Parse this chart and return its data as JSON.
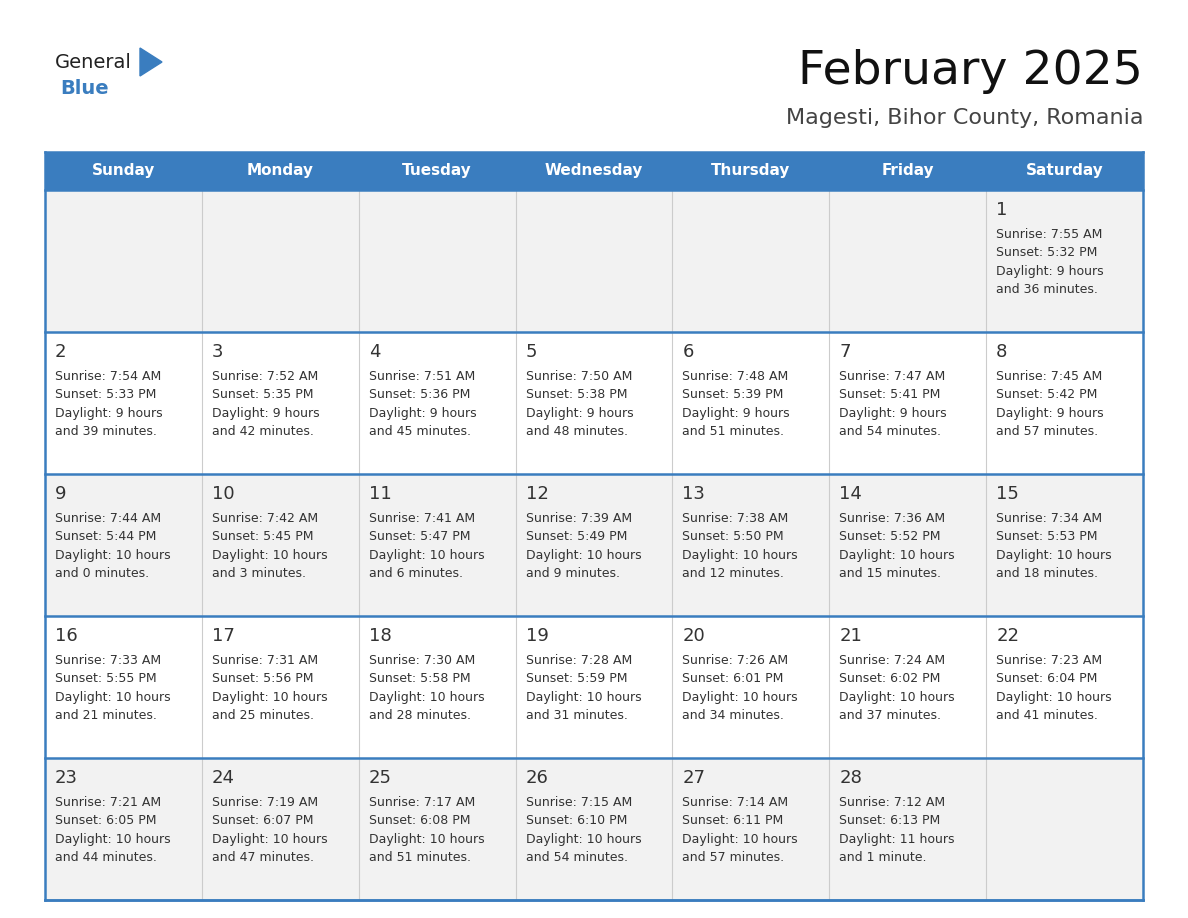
{
  "title": "February 2025",
  "subtitle": "Magesti, Bihor County, Romania",
  "header_bg": "#3A7DBF",
  "header_text_color": "#FFFFFF",
  "cell_border_color": "#3A7DBF",
  "row_separator_color": "#3A7DBF",
  "col_separator_color": "#CCCCCC",
  "day_number_color": "#333333",
  "cell_text_color": "#333333",
  "bg_color": "#FFFFFF",
  "cell_bg_odd": "#F2F2F2",
  "cell_bg_even": "#FFFFFF",
  "days_of_week": [
    "Sunday",
    "Monday",
    "Tuesday",
    "Wednesday",
    "Thursday",
    "Friday",
    "Saturday"
  ],
  "logo_general_color": "#222222",
  "logo_blue_color": "#3A7DBF",
  "calendar_data": [
    [
      null,
      null,
      null,
      null,
      null,
      null,
      {
        "day": 1,
        "sunrise": "7:55 AM",
        "sunset": "5:32 PM",
        "daylight": "9 hours",
        "daylight2": "and 36 minutes."
      }
    ],
    [
      {
        "day": 2,
        "sunrise": "7:54 AM",
        "sunset": "5:33 PM",
        "daylight": "9 hours",
        "daylight2": "and 39 minutes."
      },
      {
        "day": 3,
        "sunrise": "7:52 AM",
        "sunset": "5:35 PM",
        "daylight": "9 hours",
        "daylight2": "and 42 minutes."
      },
      {
        "day": 4,
        "sunrise": "7:51 AM",
        "sunset": "5:36 PM",
        "daylight": "9 hours",
        "daylight2": "and 45 minutes."
      },
      {
        "day": 5,
        "sunrise": "7:50 AM",
        "sunset": "5:38 PM",
        "daylight": "9 hours",
        "daylight2": "and 48 minutes."
      },
      {
        "day": 6,
        "sunrise": "7:48 AM",
        "sunset": "5:39 PM",
        "daylight": "9 hours",
        "daylight2": "and 51 minutes."
      },
      {
        "day": 7,
        "sunrise": "7:47 AM",
        "sunset": "5:41 PM",
        "daylight": "9 hours",
        "daylight2": "and 54 minutes."
      },
      {
        "day": 8,
        "sunrise": "7:45 AM",
        "sunset": "5:42 PM",
        "daylight": "9 hours",
        "daylight2": "and 57 minutes."
      }
    ],
    [
      {
        "day": 9,
        "sunrise": "7:44 AM",
        "sunset": "5:44 PM",
        "daylight": "10 hours",
        "daylight2": "and 0 minutes."
      },
      {
        "day": 10,
        "sunrise": "7:42 AM",
        "sunset": "5:45 PM",
        "daylight": "10 hours",
        "daylight2": "and 3 minutes."
      },
      {
        "day": 11,
        "sunrise": "7:41 AM",
        "sunset": "5:47 PM",
        "daylight": "10 hours",
        "daylight2": "and 6 minutes."
      },
      {
        "day": 12,
        "sunrise": "7:39 AM",
        "sunset": "5:49 PM",
        "daylight": "10 hours",
        "daylight2": "and 9 minutes."
      },
      {
        "day": 13,
        "sunrise": "7:38 AM",
        "sunset": "5:50 PM",
        "daylight": "10 hours",
        "daylight2": "and 12 minutes."
      },
      {
        "day": 14,
        "sunrise": "7:36 AM",
        "sunset": "5:52 PM",
        "daylight": "10 hours",
        "daylight2": "and 15 minutes."
      },
      {
        "day": 15,
        "sunrise": "7:34 AM",
        "sunset": "5:53 PM",
        "daylight": "10 hours",
        "daylight2": "and 18 minutes."
      }
    ],
    [
      {
        "day": 16,
        "sunrise": "7:33 AM",
        "sunset": "5:55 PM",
        "daylight": "10 hours",
        "daylight2": "and 21 minutes."
      },
      {
        "day": 17,
        "sunrise": "7:31 AM",
        "sunset": "5:56 PM",
        "daylight": "10 hours",
        "daylight2": "and 25 minutes."
      },
      {
        "day": 18,
        "sunrise": "7:30 AM",
        "sunset": "5:58 PM",
        "daylight": "10 hours",
        "daylight2": "and 28 minutes."
      },
      {
        "day": 19,
        "sunrise": "7:28 AM",
        "sunset": "5:59 PM",
        "daylight": "10 hours",
        "daylight2": "and 31 minutes."
      },
      {
        "day": 20,
        "sunrise": "7:26 AM",
        "sunset": "6:01 PM",
        "daylight": "10 hours",
        "daylight2": "and 34 minutes."
      },
      {
        "day": 21,
        "sunrise": "7:24 AM",
        "sunset": "6:02 PM",
        "daylight": "10 hours",
        "daylight2": "and 37 minutes."
      },
      {
        "day": 22,
        "sunrise": "7:23 AM",
        "sunset": "6:04 PM",
        "daylight": "10 hours",
        "daylight2": "and 41 minutes."
      }
    ],
    [
      {
        "day": 23,
        "sunrise": "7:21 AM",
        "sunset": "6:05 PM",
        "daylight": "10 hours",
        "daylight2": "and 44 minutes."
      },
      {
        "day": 24,
        "sunrise": "7:19 AM",
        "sunset": "6:07 PM",
        "daylight": "10 hours",
        "daylight2": "and 47 minutes."
      },
      {
        "day": 25,
        "sunrise": "7:17 AM",
        "sunset": "6:08 PM",
        "daylight": "10 hours",
        "daylight2": "and 51 minutes."
      },
      {
        "day": 26,
        "sunrise": "7:15 AM",
        "sunset": "6:10 PM",
        "daylight": "10 hours",
        "daylight2": "and 54 minutes."
      },
      {
        "day": 27,
        "sunrise": "7:14 AM",
        "sunset": "6:11 PM",
        "daylight": "10 hours",
        "daylight2": "and 57 minutes."
      },
      {
        "day": 28,
        "sunrise": "7:12 AM",
        "sunset": "6:13 PM",
        "daylight": "11 hours",
        "daylight2": "and 1 minute."
      },
      null
    ]
  ]
}
